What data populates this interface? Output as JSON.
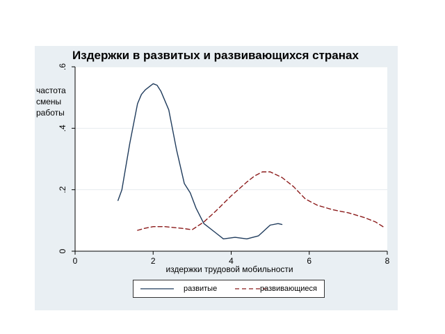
{
  "chart_data": {
    "type": "line",
    "title": "Издержки в развитых и развивающихся странах",
    "xlabel": "издержки трудовой мобильности",
    "ylabel_lines": [
      "частота",
      "смены",
      "работы"
    ],
    "xlim": [
      0,
      8
    ],
    "ylim": [
      0,
      0.6
    ],
    "xticks": [
      0,
      2,
      4,
      6,
      8
    ],
    "yticks": [
      0,
      0.2,
      0.4,
      0.6
    ],
    "ytick_labels": [
      "0",
      ".2",
      ".4",
      ".6"
    ],
    "grid": true,
    "legend_position": "bottom",
    "series": [
      {
        "name": "развитые",
        "color": "#1f3b5c",
        "style": "solid",
        "x": [
          1.1,
          1.2,
          1.4,
          1.6,
          1.7,
          1.8,
          1.9,
          2.0,
          2.1,
          2.2,
          2.4,
          2.6,
          2.8,
          2.95,
          3.1,
          3.3,
          3.6,
          3.8,
          4.1,
          4.4,
          4.7,
          5.0,
          5.2,
          5.3
        ],
        "y": [
          0.165,
          0.2,
          0.35,
          0.48,
          0.51,
          0.525,
          0.535,
          0.545,
          0.54,
          0.52,
          0.46,
          0.33,
          0.22,
          0.19,
          0.14,
          0.09,
          0.06,
          0.04,
          0.045,
          0.04,
          0.05,
          0.085,
          0.09,
          0.087
        ]
      },
      {
        "name": "развивающиеся",
        "color": "#8b1a1a",
        "style": "dashed",
        "x": [
          1.6,
          1.8,
          2.0,
          2.3,
          2.7,
          3.0,
          3.3,
          3.6,
          4.0,
          4.4,
          4.6,
          4.8,
          5.0,
          5.3,
          5.6,
          5.9,
          6.2,
          6.6,
          7.0,
          7.4,
          7.7,
          7.95
        ],
        "y": [
          0.068,
          0.075,
          0.08,
          0.08,
          0.075,
          0.07,
          0.095,
          0.13,
          0.18,
          0.225,
          0.245,
          0.258,
          0.258,
          0.24,
          0.21,
          0.17,
          0.15,
          0.135,
          0.125,
          0.11,
          0.095,
          0.075
        ]
      }
    ]
  }
}
